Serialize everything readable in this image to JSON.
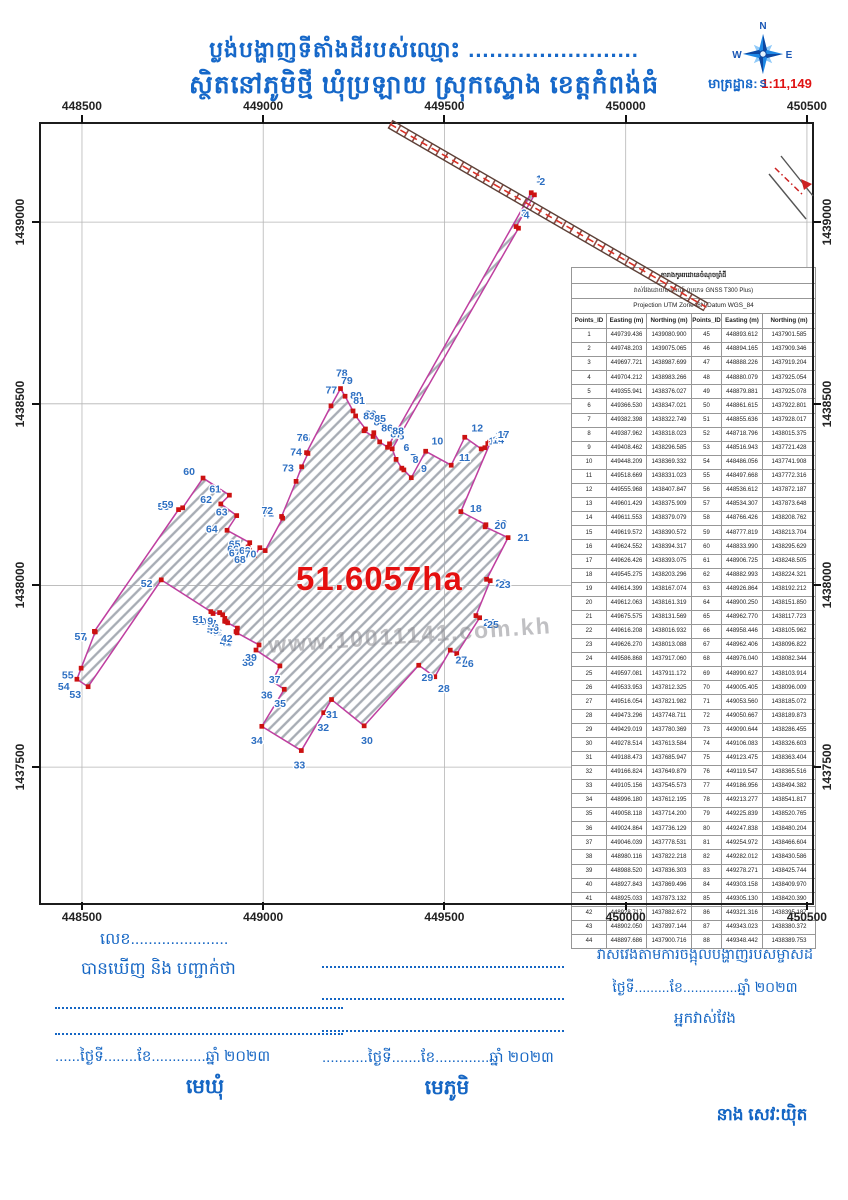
{
  "header": {
    "title_line1": "ប្លង់បង្ហាញទីតាំងដីរបស់ឈ្មោះ ........................",
    "title_line2": "ស្ថិតនៅភូមិថ្មី ឃុំប្រឡាយ ស្រុកស្ទោង ខេត្តកំពង់ធំ",
    "scale_label": "មាត្រដ្ឋាន:",
    "scale_value": "1:11,149"
  },
  "compass": {
    "n": "N",
    "s": "S",
    "e": "E",
    "w": "W"
  },
  "map": {
    "area_label": "51.6057ha",
    "watermark": "www.10011141.com.kh",
    "x_ticks": [
      448500,
      449000,
      449500,
      450000,
      450500
    ],
    "y_ticks": [
      1439000,
      1438500,
      1438000,
      1437500
    ],
    "bounds": {
      "e_min": 448387,
      "e_max": 450514,
      "n_min": 1437126,
      "n_max": 1439270
    }
  },
  "colors": {
    "blue_text": "#1566c4",
    "red_text": "#e01212",
    "parcel_stroke": "#bf3fa0",
    "hatch": "#a7acb4",
    "grid": "#b5b5b5",
    "vertex_marker": "#cc1111",
    "vertex_label": "#2d6fc2",
    "road_dark": "#5d4037",
    "road_red": "#d93025"
  },
  "table": {
    "title": "តារាងកូអរដោនេចំណុចព្រំដី",
    "subtitle": "វាស់វែងដោយឧបករណ៍ (ប្រភេទ GNSS T300 Plus)",
    "projection": "Projection UTM Zone48N,Datum WGS_84",
    "columns": [
      "Points_ID",
      "Easting (m)",
      "Northing (m)",
      "Points_ID",
      "Easting (m)",
      "Northing (m)"
    ],
    "points": [
      [
        1,
        449739.436,
        1439080.9
      ],
      [
        2,
        449748.203,
        1439075.065
      ],
      [
        3,
        449697.721,
        1438987.699
      ],
      [
        4,
        449704.212,
        1438983.266
      ],
      [
        5,
        449355.941,
        1438376.027
      ],
      [
        6,
        449366.53,
        1438347.021
      ],
      [
        7,
        449382.398,
        1438322.749
      ],
      [
        8,
        449387.962,
        1438318.023
      ],
      [
        9,
        449408.462,
        1438296.585
      ],
      [
        10,
        449448.209,
        1438369.332
      ],
      [
        11,
        449518.669,
        1438331.023
      ],
      [
        12,
        449555.968,
        1438407.847
      ],
      [
        13,
        449601.429,
        1438375.909
      ],
      [
        14,
        449611.553,
        1438379.079
      ],
      [
        15,
        449619.572,
        1438390.572
      ],
      [
        16,
        449624.552,
        1438394.317
      ],
      [
        17,
        449626.426,
        1438393.075
      ],
      [
        18,
        449545.275,
        1438203.296
      ],
      [
        19,
        449614.399,
        1438167.074
      ],
      [
        20,
        449612.063,
        1438161.319
      ],
      [
        21,
        449675.575,
        1438131.569
      ],
      [
        22,
        449616.208,
        1438016.932
      ],
      [
        23,
        449626.27,
        1438013.088
      ],
      [
        24,
        449586.868,
        1437917.06
      ],
      [
        25,
        449597.081,
        1437911.172
      ],
      [
        26,
        449533.953,
        1437812.325
      ],
      [
        27,
        449516.054,
        1437821.982
      ],
      [
        28,
        449473.296,
        1437748.711
      ],
      [
        29,
        449429.019,
        1437780.369
      ],
      [
        30,
        449278.514,
        1437613.584
      ],
      [
        31,
        449188.473,
        1437685.947
      ],
      [
        32,
        449166.824,
        1437649.879
      ],
      [
        33,
        449105.156,
        1437545.573
      ],
      [
        34,
        448996.18,
        1437612.195
      ],
      [
        35,
        449058.118,
        1437714.2
      ],
      [
        36,
        449024.864,
        1437736.129
      ],
      [
        37,
        449046.039,
        1437778.531
      ],
      [
        38,
        448980.116,
        1437822.218
      ],
      [
        39,
        448988.52,
        1437836.303
      ],
      [
        40,
        448927.843,
        1437869.496
      ],
      [
        41,
        448925.033,
        1437873.132
      ],
      [
        42,
        448928.717,
        1437882.672
      ],
      [
        43,
        448902.05,
        1437897.144
      ],
      [
        44,
        448897.686,
        1437900.716
      ],
      [
        45,
        448893.612,
        1437901.585
      ],
      [
        46,
        448894.165,
        1437909.346
      ],
      [
        47,
        448888.226,
        1437919.204
      ],
      [
        48,
        448880.079,
        1437925.054
      ],
      [
        49,
        448879.881,
        1437925.078
      ],
      [
        50,
        448861.615,
        1437922.801
      ],
      [
        51,
        448855.636,
        1437928.017
      ],
      [
        52,
        448718.796,
        1438015.375
      ],
      [
        53,
        448516.943,
        1437721.428
      ],
      [
        54,
        448486.056,
        1437741.908
      ],
      [
        55,
        448497.668,
        1437772.316
      ],
      [
        56,
        448536.612,
        1437872.187
      ],
      [
        57,
        448534.307,
        1437873.648
      ],
      [
        58,
        448766.426,
        1438208.762
      ],
      [
        59,
        448777.819,
        1438213.704
      ],
      [
        60,
        448833.99,
        1438295.629
      ],
      [
        61,
        448906.725,
        1438248.505
      ],
      [
        62,
        448882.993,
        1438224.321
      ],
      [
        63,
        448926.864,
        1438192.212
      ],
      [
        64,
        448900.25,
        1438151.85
      ],
      [
        65,
        448962.77,
        1438117.723
      ],
      [
        66,
        448958.446,
        1438105.962
      ],
      [
        67,
        448962.406,
        1438096.822
      ],
      [
        68,
        448976.04,
        1438082.344
      ],
      [
        69,
        448990.627,
        1438103.914
      ],
      [
        70,
        449005.405,
        1438096.009
      ],
      [
        71,
        449053.56,
        1438185.072
      ],
      [
        72,
        449050.667,
        1438189.873
      ],
      [
        73,
        449090.644,
        1438286.455
      ],
      [
        74,
        449106.083,
        1438326.603
      ],
      [
        75,
        449123.475,
        1438363.404
      ],
      [
        76,
        449119.547,
        1438365.516
      ],
      [
        77,
        449186.956,
        1438494.382
      ],
      [
        78,
        449213.277,
        1438541.817
      ],
      [
        79,
        449225.839,
        1438520.765
      ],
      [
        80,
        449247.838,
        1438480.204
      ],
      [
        81,
        449254.972,
        1438466.604
      ],
      [
        82,
        449282.012,
        1438430.586
      ],
      [
        83,
        449278.271,
        1438425.744
      ],
      [
        84,
        449303.158,
        1438409.97
      ],
      [
        85,
        449305.13,
        1438420.39
      ],
      [
        86,
        449321.316,
        1438395.187
      ],
      [
        87,
        449343.023,
        1438380.372
      ],
      [
        88,
        449348.442,
        1438389.753
      ]
    ]
  },
  "footer": {
    "left": {
      "line1": "លេខ......................",
      "line2": "បានឃើញ និង បញ្ជាក់ថា",
      "date": "......ថ្ងៃទី........ខែ.............ឆ្នាំ ២០២៣",
      "role": "មេឃុំ"
    },
    "middle": {
      "date": "...........ថ្ងៃទី.......ខែ.............ឆ្នាំ ២០២៣",
      "role": "មេភូមិ"
    },
    "right": {
      "line1": "វាស់វែងតាមការចង្អុលបង្ហាញរបស់ម្ចាស់ដី",
      "date": "ថ្ងៃទី.........ខែ..............ឆ្នាំ ២០២៣",
      "role": "អ្នកវាស់វែង",
      "name": "នាង សេវៈយ៉ិត"
    }
  }
}
